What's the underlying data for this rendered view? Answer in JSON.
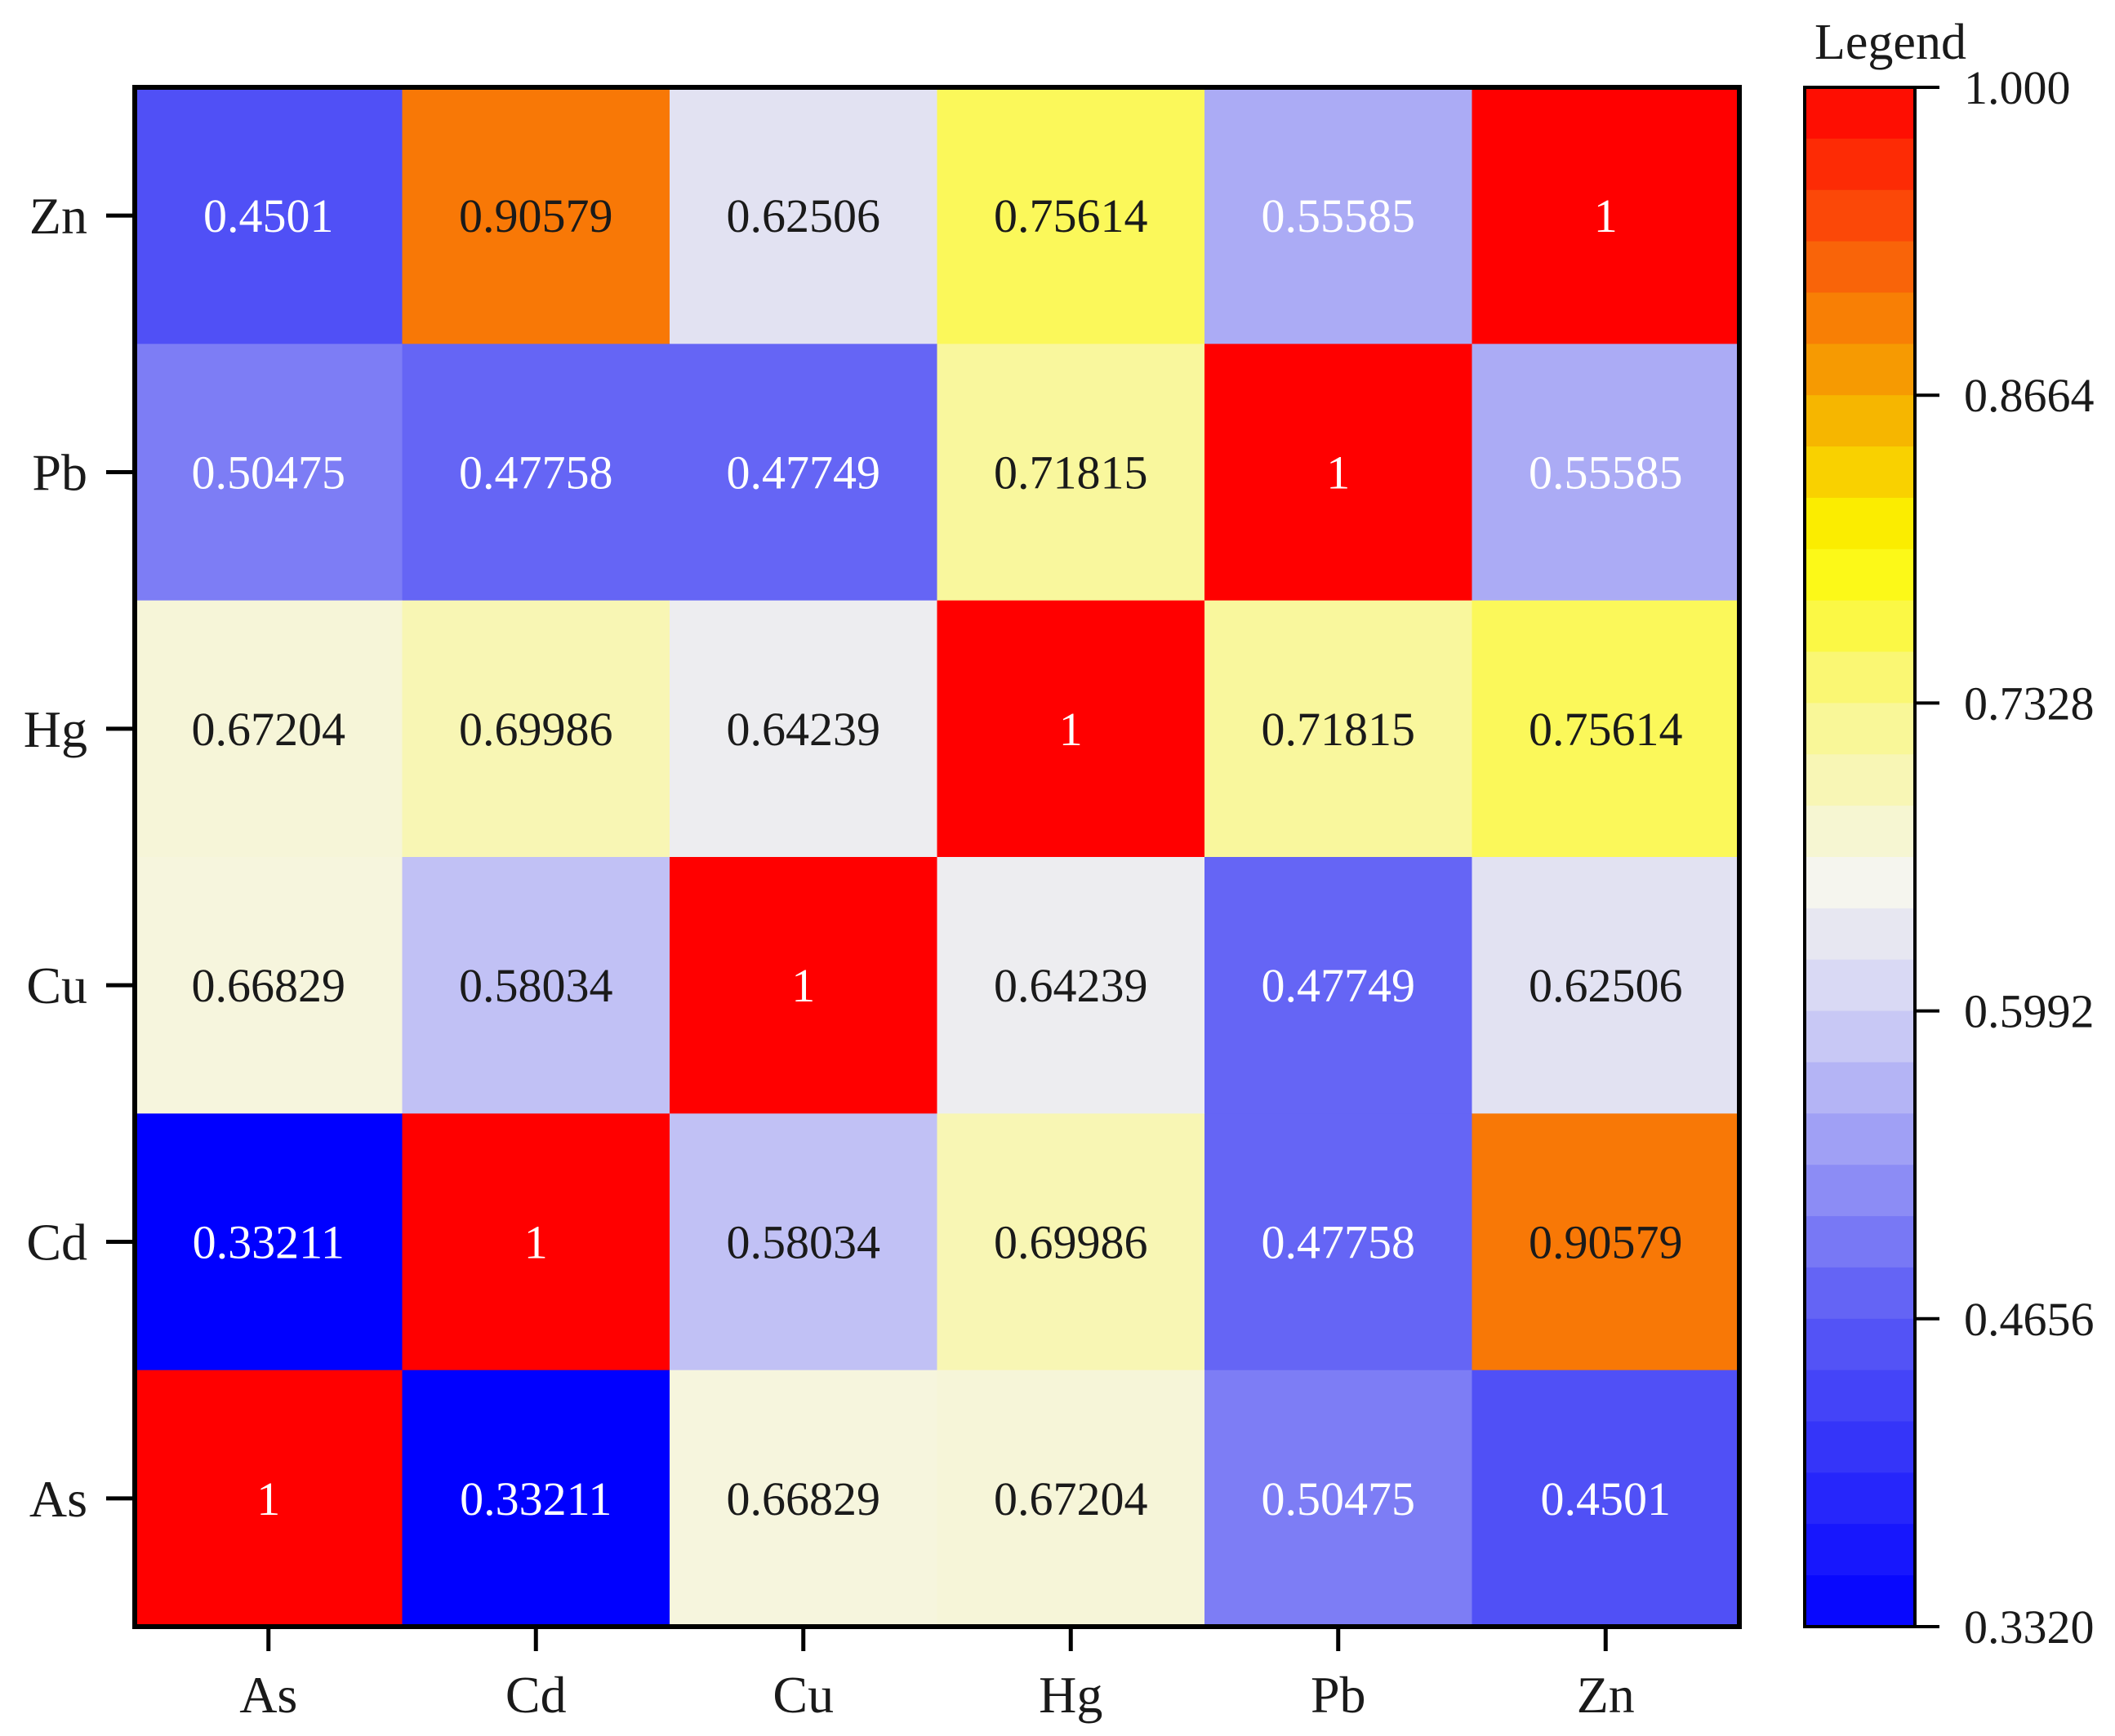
{
  "chart_data": {
    "type": "heatmap",
    "title": "",
    "xlabel": "",
    "ylabel": "",
    "x_categories": [
      "As",
      "Cd",
      "Cu",
      "Hg",
      "Pb",
      "Zn"
    ],
    "y_categories": [
      "Zn",
      "Pb",
      "Hg",
      "Cu",
      "Cd",
      "As"
    ],
    "cell_labels": [
      [
        "0.4501",
        "0.90579",
        "0.62506",
        "0.75614",
        "0.55585",
        "1"
      ],
      [
        "0.50475",
        "0.47758",
        "0.47749",
        "0.71815",
        "1",
        "0.55585"
      ],
      [
        "0.67204",
        "0.69986",
        "0.64239",
        "1",
        "0.71815",
        "0.75614"
      ],
      [
        "0.66829",
        "0.58034",
        "1",
        "0.64239",
        "0.47749",
        "0.62506"
      ],
      [
        "0.33211",
        "1",
        "0.58034",
        "0.69986",
        "0.47758",
        "0.90579"
      ],
      [
        "1",
        "0.33211",
        "0.66829",
        "0.67204",
        "0.50475",
        "0.4501"
      ]
    ],
    "values": [
      [
        0.4501,
        0.90579,
        0.62506,
        0.75614,
        0.55585,
        1
      ],
      [
        0.50475,
        0.47758,
        0.47749,
        0.71815,
        1,
        0.55585
      ],
      [
        0.67204,
        0.69986,
        0.64239,
        1,
        0.71815,
        0.75614
      ],
      [
        0.66829,
        0.58034,
        1,
        0.64239,
        0.47749,
        0.62506
      ],
      [
        0.33211,
        1,
        0.58034,
        0.69986,
        0.47758,
        0.90579
      ],
      [
        1,
        0.33211,
        0.66829,
        0.67204,
        0.50475,
        0.4501
      ]
    ],
    "legend": {
      "title": "Legend",
      "min": 0.332,
      "max": 1.0,
      "tick_labels": [
        "1.000",
        "0.8664",
        "0.7328",
        "0.5992",
        "0.4656",
        "0.3320"
      ],
      "tick_values": [
        1.0,
        0.8664,
        0.7328,
        0.5992,
        0.4656,
        0.332
      ],
      "bands": 30,
      "color_stops": [
        {
          "v": 0.332,
          "color": "#0000ff"
        },
        {
          "v": 0.4656,
          "color": "#5a5af5"
        },
        {
          "v": 0.5992,
          "color": "#d2d2f5"
        },
        {
          "v": 0.655,
          "color": "#f5f5ee"
        },
        {
          "v": 0.7328,
          "color": "#faf78a"
        },
        {
          "v": 0.8,
          "color": "#fcfa00"
        },
        {
          "v": 0.8664,
          "color": "#f5a800"
        },
        {
          "v": 0.93,
          "color": "#fa5a0a"
        },
        {
          "v": 1.0,
          "color": "#ff0000"
        }
      ]
    }
  },
  "colors": {
    "axis": "#000000",
    "text_dark": "#1a1a1a",
    "text_light": "#ffffff",
    "background": "#ffffff"
  }
}
